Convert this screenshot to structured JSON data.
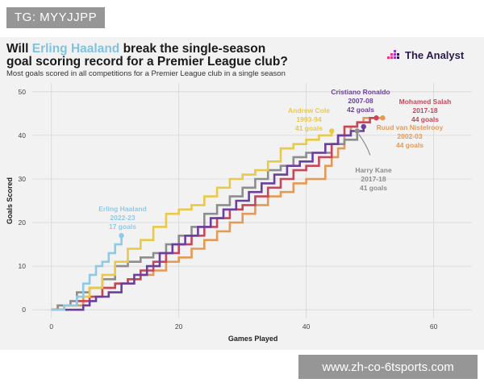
{
  "watermark_top": "TG: MYYJJPP",
  "watermark_bottom": "www.zh-co-6tsports.com",
  "title": {
    "pre": "Will ",
    "highlight": "Erling Haaland",
    "post_line1": " break the single-season",
    "line2": "goal scoring record for a Premier League club?"
  },
  "subtitle": "Most goals scored in all competitions for a Premier League club in a single season",
  "brand": {
    "name": "The Analyst",
    "icon": "analyst-logo-icon"
  },
  "colors": {
    "haaland": "#8ecae6",
    "cole": "#e8c94a",
    "ronaldo": "#6b3fa0",
    "salah": "#c8465a",
    "nistelrooy": "#e39a55",
    "kane": "#8d8d8d"
  },
  "chart_data": {
    "type": "line",
    "xlabel": "Games Played",
    "ylabel": "Goals Scored",
    "xlim": [
      -3,
      66
    ],
    "ylim": [
      -2,
      52
    ],
    "xticks": [
      0,
      20,
      40,
      60
    ],
    "yticks": [
      0,
      10,
      20,
      30,
      40,
      50
    ],
    "grid": true,
    "series": [
      {
        "name": "Ruud van Nistelrooy 2002-03",
        "color_key": "nistelrooy",
        "points": [
          [
            0,
            0
          ],
          [
            1,
            1
          ],
          [
            3,
            1
          ],
          [
            5,
            3
          ],
          [
            7,
            3
          ],
          [
            8,
            5
          ],
          [
            10,
            6
          ],
          [
            12,
            7
          ],
          [
            14,
            8
          ],
          [
            16,
            9
          ],
          [
            18,
            11
          ],
          [
            20,
            12
          ],
          [
            22,
            14
          ],
          [
            24,
            16
          ],
          [
            26,
            18
          ],
          [
            28,
            20
          ],
          [
            30,
            22
          ],
          [
            32,
            24
          ],
          [
            34,
            26
          ],
          [
            36,
            27
          ],
          [
            38,
            29
          ],
          [
            40,
            30
          ],
          [
            42,
            30
          ],
          [
            43,
            33
          ],
          [
            44,
            35
          ],
          [
            45,
            37
          ],
          [
            46,
            40
          ],
          [
            47,
            42
          ],
          [
            48,
            43
          ],
          [
            49,
            44
          ],
          [
            50,
            44
          ],
          [
            52,
            44
          ]
        ],
        "end_label": [
          "Ruud van Nistelrooy",
          "2002-03",
          "44 goals"
        ]
      },
      {
        "name": "Harry Kane 2017-18",
        "color_key": "kane",
        "points": [
          [
            0,
            0
          ],
          [
            1,
            1
          ],
          [
            3,
            2
          ],
          [
            4,
            4
          ],
          [
            6,
            5
          ],
          [
            8,
            7
          ],
          [
            10,
            10
          ],
          [
            12,
            11
          ],
          [
            14,
            12
          ],
          [
            16,
            13
          ],
          [
            18,
            15
          ],
          [
            20,
            17
          ],
          [
            22,
            19
          ],
          [
            24,
            22
          ],
          [
            26,
            24
          ],
          [
            28,
            26
          ],
          [
            30,
            28
          ],
          [
            32,
            30
          ],
          [
            34,
            32
          ],
          [
            36,
            33
          ],
          [
            38,
            35
          ],
          [
            40,
            36
          ],
          [
            42,
            36
          ],
          [
            44,
            38
          ],
          [
            46,
            39
          ],
          [
            48,
            41
          ]
        ],
        "end_label": [
          "Harry Kane",
          "2017-18",
          "41 goals"
        ]
      },
      {
        "name": "Mohamed Salah 2017-18",
        "color_key": "salah",
        "points": [
          [
            0,
            0
          ],
          [
            2,
            1
          ],
          [
            4,
            2
          ],
          [
            6,
            3
          ],
          [
            8,
            5
          ],
          [
            10,
            6
          ],
          [
            12,
            7
          ],
          [
            14,
            9
          ],
          [
            16,
            11
          ],
          [
            18,
            13
          ],
          [
            20,
            15
          ],
          [
            22,
            17
          ],
          [
            24,
            19
          ],
          [
            26,
            21
          ],
          [
            28,
            23
          ],
          [
            30,
            24
          ],
          [
            32,
            26
          ],
          [
            34,
            28
          ],
          [
            36,
            30
          ],
          [
            38,
            32
          ],
          [
            40,
            33
          ],
          [
            42,
            35
          ],
          [
            44,
            38
          ],
          [
            45,
            40
          ],
          [
            46,
            42
          ],
          [
            48,
            43
          ],
          [
            50,
            44
          ],
          [
            51,
            44
          ]
        ],
        "end_label": [
          "Mohamed Salah",
          "2017-18",
          "44 goals"
        ]
      },
      {
        "name": "Cristiano Ronaldo 2007-08",
        "color_key": "ronaldo",
        "points": [
          [
            0,
            0
          ],
          [
            3,
            0
          ],
          [
            5,
            1
          ],
          [
            6,
            2
          ],
          [
            7,
            3
          ],
          [
            9,
            4
          ],
          [
            11,
            6
          ],
          [
            13,
            8
          ],
          [
            15,
            10
          ],
          [
            17,
            13
          ],
          [
            19,
            15
          ],
          [
            21,
            17
          ],
          [
            23,
            19
          ],
          [
            25,
            21
          ],
          [
            27,
            23
          ],
          [
            29,
            25
          ],
          [
            31,
            27
          ],
          [
            33,
            29
          ],
          [
            35,
            31
          ],
          [
            37,
            33
          ],
          [
            39,
            34
          ],
          [
            41,
            36
          ],
          [
            43,
            38
          ],
          [
            45,
            40
          ],
          [
            47,
            41
          ],
          [
            49,
            42
          ]
        ],
        "end_label": [
          "Cristiano Ronaldo",
          "2007-08",
          "42 goals"
        ]
      },
      {
        "name": "Andrew Cole 1993-94",
        "color_key": "cole",
        "points": [
          [
            0,
            0
          ],
          [
            2,
            1
          ],
          [
            4,
            3
          ],
          [
            6,
            5
          ],
          [
            8,
            8
          ],
          [
            10,
            11
          ],
          [
            12,
            14
          ],
          [
            14,
            16
          ],
          [
            16,
            19
          ],
          [
            18,
            22
          ],
          [
            20,
            23
          ],
          [
            22,
            24
          ],
          [
            24,
            26
          ],
          [
            26,
            28
          ],
          [
            28,
            30
          ],
          [
            30,
            31
          ],
          [
            32,
            32
          ],
          [
            34,
            34
          ],
          [
            36,
            37
          ],
          [
            38,
            38
          ],
          [
            40,
            39
          ],
          [
            42,
            40
          ],
          [
            44,
            41
          ]
        ],
        "end_label": [
          "Andrew Cole",
          "1993-94",
          "41 goals"
        ]
      },
      {
        "name": "Erling Haaland 2022-23",
        "color_key": "haaland",
        "points": [
          [
            0,
            0
          ],
          [
            2,
            1
          ],
          [
            4,
            3
          ],
          [
            5,
            6
          ],
          [
            6,
            8
          ],
          [
            7,
            10
          ],
          [
            8,
            11
          ],
          [
            9,
            13
          ],
          [
            10,
            15
          ],
          [
            11,
            17
          ]
        ],
        "end_label": [
          "Erling Haaland",
          "2022-23",
          "17 goals"
        ]
      }
    ]
  }
}
